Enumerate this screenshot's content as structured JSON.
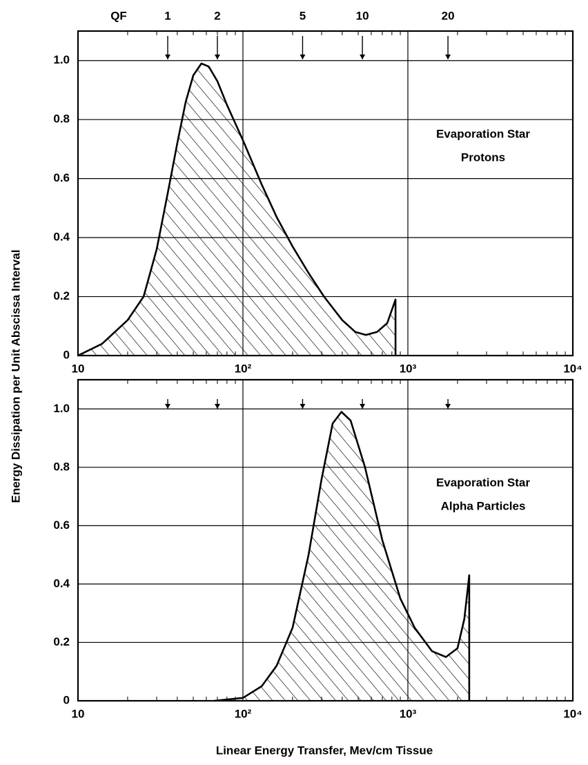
{
  "y_label": "Energy Dissipation per Unit Abscissa Interval",
  "x_label": "Linear Energy Transfer, Mev/cm Tissue",
  "qf_scale": {
    "label": "QF",
    "values": [
      1,
      2,
      5,
      10,
      20
    ],
    "let": [
      35,
      70,
      230,
      530,
      1750
    ]
  },
  "chart_data": [
    {
      "type": "area",
      "xscale": "log",
      "color": "#000000",
      "grid": true,
      "x": [
        10,
        14,
        20,
        25,
        30,
        35,
        40,
        45,
        50,
        56,
        62,
        70,
        80,
        100,
        130,
        160,
        200,
        250,
        310,
        400,
        480,
        556,
        650,
        750,
        842
      ],
      "values": [
        0,
        0.04,
        0.12,
        0.2,
        0.36,
        0.55,
        0.72,
        0.86,
        0.95,
        0.99,
        0.98,
        0.93,
        0.85,
        0.73,
        0.58,
        0.47,
        0.37,
        0.28,
        0.2,
        0.12,
        0.08,
        0.07,
        0.08,
        0.11,
        0.19
      ],
      "xlim": [
        10,
        10000
      ],
      "ylim": [
        0,
        1.1
      ],
      "xticks": [
        10,
        {
          "value": 100,
          "label": "10²"
        },
        {
          "value": 1000,
          "label": "10³"
        },
        {
          "value": 10000,
          "label": "10⁴"
        }
      ],
      "yticks": [
        0,
        0.2,
        0.4,
        0.6,
        0.8,
        {
          "value": 1,
          "label": "1.0"
        }
      ],
      "annotation": [
        "Evaporation Star",
        "Protons"
      ]
    },
    {
      "type": "area",
      "xscale": "log",
      "color": "#000000",
      "grid": true,
      "x": [
        67,
        100,
        130,
        160,
        200,
        250,
        300,
        350,
        396,
        450,
        550,
        700,
        900,
        1100,
        1400,
        1700,
        2000,
        2200,
        2355
      ],
      "values": [
        0,
        0.01,
        0.05,
        0.12,
        0.25,
        0.5,
        0.76,
        0.95,
        0.99,
        0.96,
        0.8,
        0.55,
        0.35,
        0.25,
        0.17,
        0.15,
        0.18,
        0.28,
        0.43
      ],
      "xlim": [
        10,
        10000
      ],
      "ylim": [
        0,
        1.1
      ],
      "xticks": [
        10,
        {
          "value": 100,
          "label": "10²"
        },
        {
          "value": 1000,
          "label": "10³"
        },
        {
          "value": 10000,
          "label": "10⁴"
        }
      ],
      "yticks": [
        0,
        0.2,
        0.4,
        0.6,
        0.8,
        {
          "value": 1,
          "label": "1.0"
        }
      ],
      "annotation": [
        "Evaporation Star",
        "Alpha Particles"
      ]
    }
  ]
}
